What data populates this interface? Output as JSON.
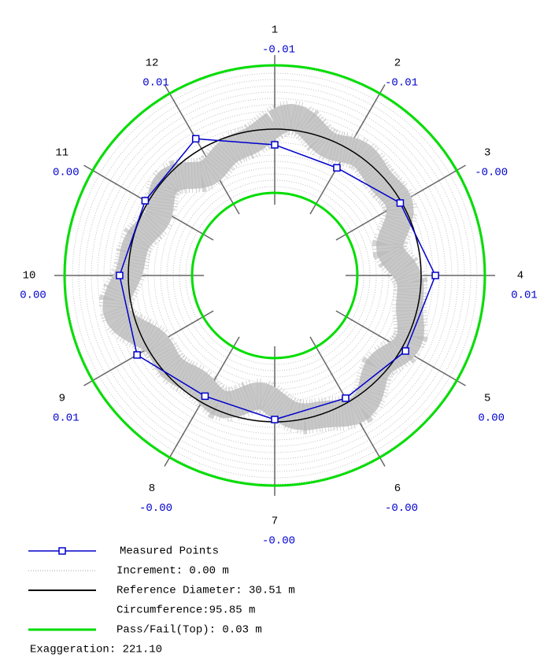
{
  "chart_data": {
    "type": "polar-roundness",
    "categories": [
      "1",
      "2",
      "3",
      "4",
      "5",
      "6",
      "7",
      "8",
      "9",
      "10",
      "11",
      "12"
    ],
    "series": [
      {
        "name": "Measured Points",
        "color": "#0000cc",
        "values": [
          -0.0074,
          -0.0104,
          -0.0007,
          0.0067,
          0.0022,
          -0.0022,
          -0.0011,
          -0.0033,
          0.0059,
          0.0041,
          0.0015,
          0.0054
        ],
        "value_labels": [
          "-0.01",
          "-0.01",
          "-0.00",
          "0.01",
          "0.00",
          "-0.00",
          "-0.00",
          "-0.00",
          "0.01",
          "0.00",
          "0.00",
          "0.01"
        ]
      }
    ],
    "rlim": [
      -0.03,
      0.03
    ],
    "legend_items": [
      {
        "name": "Increment: 0.00 m",
        "color": "#c0c0c0"
      },
      {
        "name": "Reference Diameter: 30.51 m",
        "color": "#000000"
      },
      {
        "name": "Circumference:95.85 m"
      },
      {
        "name": "Pass/Fail(Top): 0.03 m",
        "color": "#00dd00"
      }
    ],
    "note": "Exaggeration: 221.10"
  }
}
